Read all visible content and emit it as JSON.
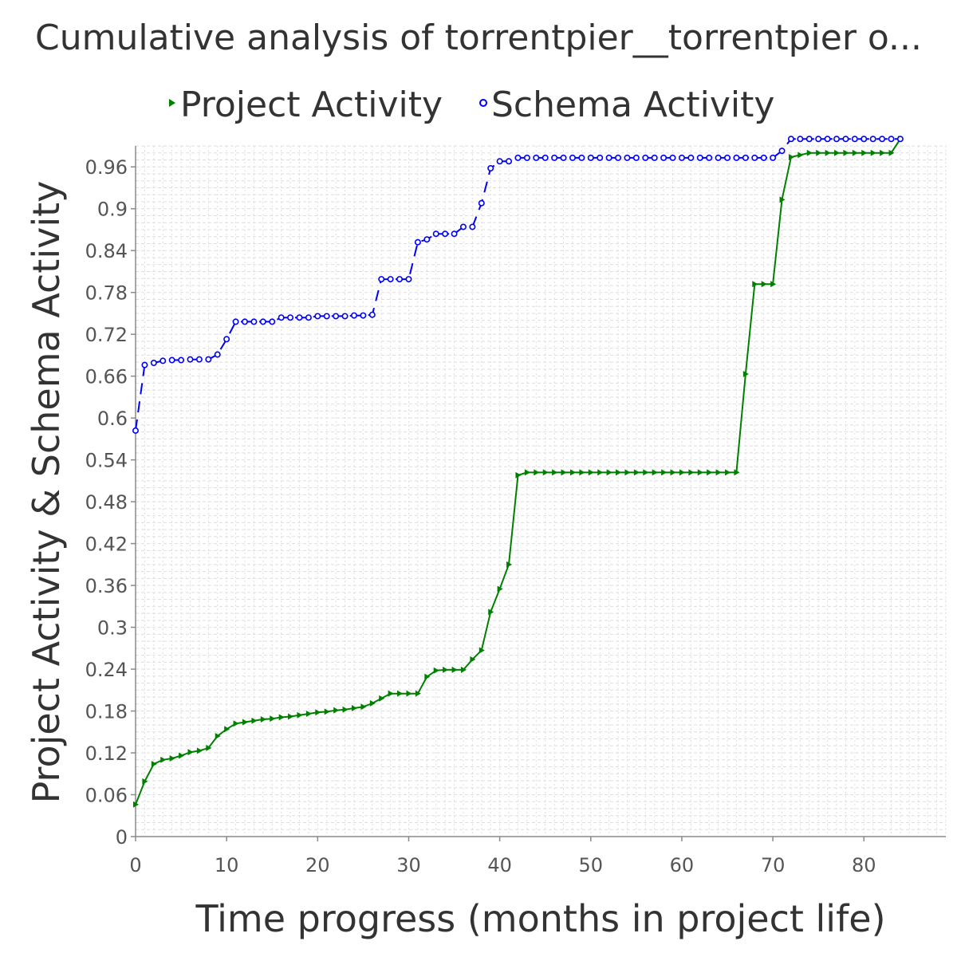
{
  "chart_data": {
    "type": "line",
    "title": "Cumulative analysis of torrentpier__torrentpier o...",
    "xlabel": "Time progress (months in project life)",
    "ylabel": "Project Activity & Schema Activity",
    "xlim": [
      0,
      89
    ],
    "ylim": [
      0,
      0.99
    ],
    "x_ticks": [
      0,
      10,
      20,
      30,
      40,
      50,
      60,
      70,
      80
    ],
    "y_ticks": [
      0,
      0.06,
      0.12,
      0.18,
      0.24,
      0.3,
      0.36,
      0.42,
      0.48,
      0.54,
      0.6,
      0.66,
      0.72,
      0.78,
      0.84,
      0.9,
      0.96
    ],
    "x_tick_labels": [
      "0",
      "10",
      "20",
      "30",
      "40",
      "50",
      "60",
      "70",
      "80"
    ],
    "y_tick_labels": [
      "0",
      "0.06",
      "0.12",
      "0.18",
      "0.24",
      "0.3",
      "0.36",
      "0.42",
      "0.48",
      "0.54",
      "0.6",
      "0.66",
      "0.72",
      "0.78",
      "0.84",
      "0.9",
      "0.96"
    ],
    "grid": true,
    "legend_position": "top",
    "series": [
      {
        "name": "Project Activity",
        "color": "#008000",
        "marker": "triangle-right",
        "line_style": "solid",
        "x": [
          0,
          1,
          2,
          3,
          4,
          5,
          6,
          7,
          8,
          9,
          10,
          11,
          12,
          13,
          14,
          15,
          16,
          17,
          18,
          19,
          20,
          21,
          22,
          23,
          24,
          25,
          26,
          27,
          28,
          29,
          30,
          31,
          32,
          33,
          34,
          35,
          36,
          37,
          38,
          39,
          40,
          41,
          42,
          43,
          44,
          45,
          46,
          47,
          48,
          49,
          50,
          51,
          52,
          53,
          54,
          55,
          56,
          57,
          58,
          59,
          60,
          61,
          62,
          63,
          64,
          65,
          66,
          67,
          68,
          69,
          70,
          71,
          72,
          73,
          74,
          75,
          76,
          77,
          78,
          79,
          80,
          81,
          82,
          83,
          84
        ],
        "values": [
          0.046,
          0.079,
          0.104,
          0.11,
          0.112,
          0.116,
          0.121,
          0.123,
          0.127,
          0.144,
          0.154,
          0.162,
          0.164,
          0.166,
          0.168,
          0.169,
          0.171,
          0.172,
          0.174,
          0.176,
          0.178,
          0.179,
          0.181,
          0.182,
          0.184,
          0.186,
          0.191,
          0.198,
          0.205,
          0.205,
          0.205,
          0.205,
          0.229,
          0.238,
          0.239,
          0.239,
          0.239,
          0.254,
          0.267,
          0.322,
          0.355,
          0.39,
          0.518,
          0.522,
          0.522,
          0.522,
          0.522,
          0.522,
          0.522,
          0.522,
          0.522,
          0.522,
          0.522,
          0.522,
          0.522,
          0.522,
          0.522,
          0.522,
          0.522,
          0.522,
          0.522,
          0.522,
          0.522,
          0.522,
          0.522,
          0.522,
          0.522,
          0.663,
          0.792,
          0.792,
          0.792,
          0.913,
          0.974,
          0.977,
          0.98,
          0.98,
          0.98,
          0.98,
          0.98,
          0.98,
          0.98,
          0.98,
          0.98,
          0.98,
          1.0
        ]
      },
      {
        "name": "Schema Activity",
        "color": "#0000ff",
        "marker": "circle",
        "line_style": "dashed",
        "x": [
          0,
          1,
          2,
          3,
          4,
          5,
          6,
          7,
          8,
          9,
          10,
          11,
          12,
          13,
          14,
          15,
          16,
          17,
          18,
          19,
          20,
          21,
          22,
          23,
          24,
          25,
          26,
          27,
          28,
          29,
          30,
          31,
          32,
          33,
          34,
          35,
          36,
          37,
          38,
          39,
          40,
          41,
          42,
          43,
          44,
          45,
          46,
          47,
          48,
          49,
          50,
          51,
          52,
          53,
          54,
          55,
          56,
          57,
          58,
          59,
          60,
          61,
          62,
          63,
          64,
          65,
          66,
          67,
          68,
          69,
          70,
          71,
          72,
          73,
          74,
          75,
          76,
          77,
          78,
          79,
          80,
          81,
          82,
          83,
          84
        ],
        "values": [
          0.582,
          0.676,
          0.679,
          0.682,
          0.683,
          0.683,
          0.684,
          0.684,
          0.684,
          0.691,
          0.713,
          0.738,
          0.738,
          0.738,
          0.738,
          0.738,
          0.744,
          0.744,
          0.744,
          0.744,
          0.746,
          0.746,
          0.746,
          0.746,
          0.747,
          0.747,
          0.748,
          0.799,
          0.799,
          0.799,
          0.799,
          0.852,
          0.856,
          0.864,
          0.864,
          0.864,
          0.874,
          0.874,
          0.908,
          0.958,
          0.968,
          0.968,
          0.973,
          0.973,
          0.973,
          0.973,
          0.973,
          0.973,
          0.973,
          0.973,
          0.973,
          0.973,
          0.973,
          0.973,
          0.973,
          0.973,
          0.973,
          0.973,
          0.973,
          0.973,
          0.973,
          0.973,
          0.973,
          0.973,
          0.973,
          0.973,
          0.973,
          0.973,
          0.973,
          0.973,
          0.973,
          0.983,
          1.0,
          1.0,
          1.0,
          1.0,
          1.0,
          1.0,
          1.0,
          1.0,
          1.0,
          1.0,
          1.0,
          1.0,
          1.0
        ]
      }
    ]
  }
}
